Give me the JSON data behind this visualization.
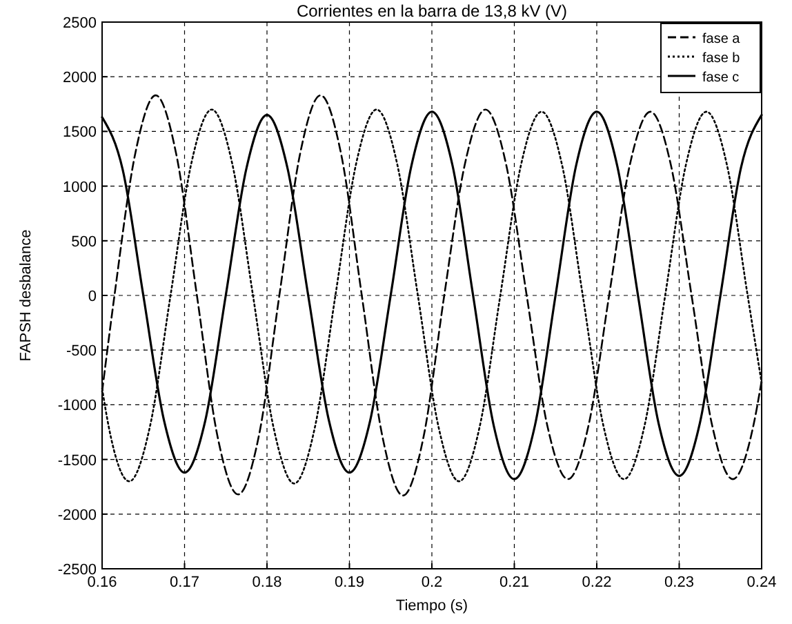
{
  "chart_data": {
    "type": "line",
    "title": "Corrientes en la barra de 13,8 kV (V)",
    "xlabel": "Tiempo (s)",
    "ylabel": "FAPSH desbalance",
    "xlim": [
      0.16,
      0.24
    ],
    "ylim": [
      -2500,
      2500
    ],
    "xticks": [
      0.16,
      0.17,
      0.18,
      0.19,
      0.2,
      0.21,
      0.22,
      0.23,
      0.24
    ],
    "yticks": [
      -2500,
      -2000,
      -1500,
      -1000,
      -500,
      0,
      500,
      1000,
      1500,
      2000,
      2500
    ],
    "grid": true,
    "legend": "top right",
    "series": [
      {
        "name": "fase a",
        "color": "#000000",
        "line_style": "dashed",
        "x": [
          0.16,
          0.1615,
          0.164,
          0.1665,
          0.169,
          0.1715,
          0.174,
          0.1765,
          0.179,
          0.1815,
          0.184,
          0.1865,
          0.189,
          0.1915,
          0.194,
          0.1965,
          0.199,
          0.2015,
          0.204,
          0.2065,
          0.209,
          0.2115,
          0.214,
          0.2165,
          0.219,
          0.2215,
          0.224,
          0.2265,
          0.229,
          0.2315,
          0.234,
          0.2365,
          0.239,
          0.24
        ],
        "values": [
          -880,
          0,
          1290,
          1830,
          1290,
          0,
          -1290,
          -1820,
          -1290,
          0,
          1290,
          1830,
          1290,
          0,
          -1290,
          -1830,
          -1290,
          0,
          1200,
          1700,
          1200,
          0,
          -1190,
          -1680,
          -1190,
          0,
          1190,
          1680,
          1190,
          0,
          -1190,
          -1680,
          -1190,
          -780
        ]
      },
      {
        "name": "fase b",
        "color": "#000000",
        "line_style": "dotted",
        "x": [
          0.16,
          0.1608,
          0.1633,
          0.1658,
          0.1683,
          0.1708,
          0.1733,
          0.1758,
          0.1783,
          0.1808,
          0.1833,
          0.1858,
          0.1883,
          0.1908,
          0.1933,
          0.1958,
          0.1983,
          0.2008,
          0.2033,
          0.2058,
          0.2083,
          0.2108,
          0.2133,
          0.2158,
          0.2183,
          0.2208,
          0.2233,
          0.2258,
          0.2283,
          0.2308,
          0.2333,
          0.2358,
          0.2383,
          0.24
        ],
        "values": [
          -850,
          -1200,
          -1700,
          -1200,
          0,
          1200,
          1700,
          1200,
          0,
          -1210,
          -1720,
          -1210,
          0,
          1200,
          1700,
          1200,
          0,
          -1200,
          -1700,
          -1200,
          0,
          1190,
          1680,
          1190,
          0,
          -1190,
          -1680,
          -1190,
          0,
          1190,
          1680,
          1190,
          0,
          -800
        ]
      },
      {
        "name": "fase c",
        "color": "#000000",
        "line_style": "solid",
        "x": [
          0.16,
          0.1625,
          0.165,
          0.1675,
          0.17,
          0.1725,
          0.175,
          0.1775,
          0.18,
          0.1825,
          0.185,
          0.1875,
          0.19,
          0.1925,
          0.195,
          0.1975,
          0.2,
          0.2025,
          0.205,
          0.2075,
          0.21,
          0.2125,
          0.215,
          0.2175,
          0.22,
          0.2225,
          0.225,
          0.2275,
          0.23,
          0.2325,
          0.235,
          0.2375,
          0.24
        ],
        "values": [
          1630,
          1150,
          0,
          -1140,
          -1620,
          -1150,
          0,
          1160,
          1650,
          1160,
          0,
          -1140,
          -1620,
          -1150,
          0,
          1180,
          1680,
          1190,
          0,
          -1190,
          -1680,
          -1190,
          0,
          1190,
          1680,
          1180,
          0,
          -1170,
          -1650,
          -1170,
          0,
          1170,
          1650
        ]
      }
    ]
  }
}
